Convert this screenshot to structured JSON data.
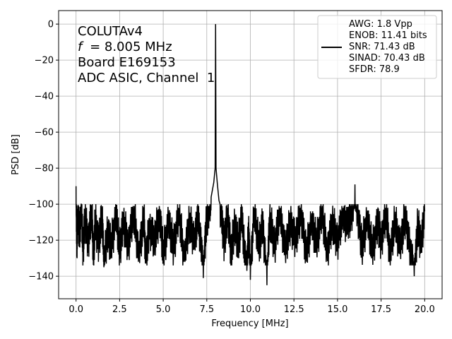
{
  "chart_data": {
    "type": "line",
    "xlabel": "Frequency [MHz]",
    "ylabel": "PSD [dB]",
    "xlim": [
      -1.0,
      21.0
    ],
    "ylim": [
      -152.5,
      7.5
    ],
    "x_ticks": [
      0.0,
      2.5,
      5.0,
      7.5,
      10.0,
      12.5,
      15.0,
      17.5,
      20.0
    ],
    "x_tick_labels": [
      "0.0",
      "2.5",
      "5.0",
      "7.5",
      "10.0",
      "12.5",
      "15.0",
      "17.5",
      "20.0"
    ],
    "y_ticks": [
      0,
      -20,
      -40,
      -60,
      -80,
      -100,
      -120,
      -140
    ],
    "y_tick_labels": [
      "0",
      "−20",
      "−40",
      "−60",
      "−80",
      "−100",
      "−120",
      "−140"
    ],
    "grid": true,
    "annotation": {
      "lines": [
        "COLUTAv4",
        "= 8.005 MHz",
        "Board E169153",
        "ADC ASIC, Channel  1"
      ],
      "italic_symbol": "f"
    },
    "legend": {
      "placement": "top-right",
      "lines": [
        "AWG: 1.8 Vpp",
        "ENOB: 11.41 bits",
        "SNR: 71.43 dB",
        "SINAD: 70.43 dB",
        "SFDR: 78.9"
      ]
    },
    "series": [
      {
        "color": "#000000",
        "description": "noise floor approx -112 dB (band -132 to -100) across 0-20 MHz",
        "points": [
          [
            0.0,
            -90
          ],
          [
            0.02,
            -106
          ],
          [
            0.05,
            -122
          ],
          [
            0.1,
            -104
          ],
          [
            0.2,
            -118
          ],
          [
            0.3,
            -100
          ],
          [
            0.4,
            -126
          ],
          [
            0.5,
            -108
          ],
          [
            0.7,
            -120
          ],
          [
            0.9,
            -103
          ],
          [
            1.0,
            -130
          ],
          [
            1.1,
            -110
          ],
          [
            1.3,
            -122
          ],
          [
            1.5,
            -104
          ],
          [
            1.6,
            -135
          ],
          [
            1.8,
            -114
          ],
          [
            2.0,
            -124
          ],
          [
            2.3,
            -106
          ],
          [
            2.5,
            -126
          ],
          [
            2.7,
            -110
          ],
          [
            3.0,
            -122
          ],
          [
            3.3,
            -104
          ],
          [
            3.6,
            -128
          ],
          [
            3.9,
            -108
          ],
          [
            4.0,
            -133
          ],
          [
            4.2,
            -112
          ],
          [
            4.5,
            -120
          ],
          [
            4.8,
            -105
          ],
          [
            5.0,
            -128
          ],
          [
            5.3,
            -110
          ],
          [
            5.6,
            -124
          ],
          [
            5.9,
            -104
          ],
          [
            6.2,
            -130
          ],
          [
            6.5,
            -110
          ],
          [
            6.8,
            -120
          ],
          [
            7.0,
            -106
          ],
          [
            7.2,
            -126
          ],
          [
            7.3,
            -141
          ],
          [
            7.45,
            -112
          ],
          [
            7.6,
            -102
          ],
          [
            7.75,
            -96
          ],
          [
            7.9,
            -88
          ],
          [
            7.98,
            -80
          ],
          [
            8.005,
            0
          ],
          [
            8.03,
            -80
          ],
          [
            8.1,
            -88
          ],
          [
            8.2,
            -98
          ],
          [
            8.35,
            -106
          ],
          [
            8.5,
            -122
          ],
          [
            8.7,
            -104
          ],
          [
            8.9,
            -128
          ],
          [
            9.1,
            -110
          ],
          [
            9.3,
            -124
          ],
          [
            9.5,
            -106
          ],
          [
            9.7,
            -132
          ],
          [
            9.8,
            -137
          ],
          [
            9.9,
            -112
          ],
          [
            10.0,
            -142
          ],
          [
            10.2,
            -104
          ],
          [
            10.5,
            -124
          ],
          [
            10.7,
            -110
          ],
          [
            10.95,
            -145
          ],
          [
            11.1,
            -108
          ],
          [
            11.4,
            -122
          ],
          [
            11.7,
            -104
          ],
          [
            12.0,
            -126
          ],
          [
            12.3,
            -110
          ],
          [
            12.6,
            -120
          ],
          [
            12.9,
            -103
          ],
          [
            13.2,
            -128
          ],
          [
            13.5,
            -110
          ],
          [
            13.8,
            -122
          ],
          [
            14.1,
            -104
          ],
          [
            14.4,
            -126
          ],
          [
            14.7,
            -110
          ],
          [
            15.0,
            -120
          ],
          [
            15.3,
            -106
          ],
          [
            15.6,
            -112
          ],
          [
            15.85,
            -102
          ],
          [
            16.0,
            -89
          ],
          [
            16.15,
            -104
          ],
          [
            16.4,
            -124
          ],
          [
            16.7,
            -108
          ],
          [
            17.0,
            -126
          ],
          [
            17.3,
            -110
          ],
          [
            17.5,
            -120
          ],
          [
            17.8,
            -104
          ],
          [
            18.0,
            -128
          ],
          [
            18.3,
            -110
          ],
          [
            18.6,
            -124
          ],
          [
            18.9,
            -106
          ],
          [
            19.2,
            -128
          ],
          [
            19.4,
            -140
          ],
          [
            19.6,
            -112
          ],
          [
            19.8,
            -122
          ],
          [
            20.0,
            -104
          ]
        ]
      }
    ]
  }
}
